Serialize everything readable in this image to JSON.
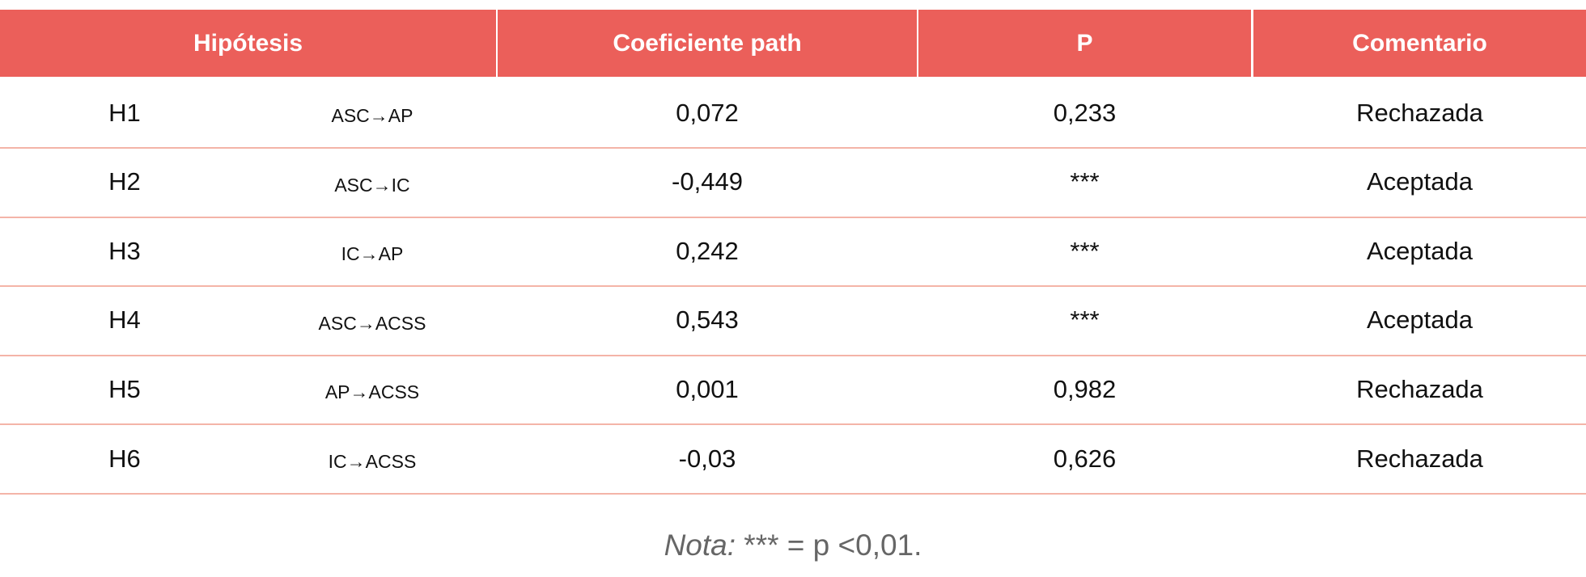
{
  "table": {
    "header": [
      "Hipótesis",
      "Coeficiente path",
      "P",
      "Comentario"
    ],
    "rows": [
      [
        "H1",
        "ASC→AP",
        "0,072",
        "0,233",
        "Rechazada"
      ],
      [
        "H2",
        "ASC→IC",
        "-0,449",
        "***",
        "Aceptada"
      ],
      [
        "H3",
        "IC→AP",
        "0,242",
        "***",
        "Aceptada"
      ],
      [
        "H4",
        "ASC→ACSS",
        "0,543",
        "***",
        "Aceptada"
      ],
      [
        "H5",
        "AP→ACSS",
        "0,001",
        "0,982",
        "Rechazada"
      ],
      [
        "H6",
        "IC→ACSS",
        "-0,03",
        "0,626",
        "Rechazada"
      ]
    ]
  },
  "note": {
    "label": "Nota:",
    "text": "*** = p <0,01."
  }
}
